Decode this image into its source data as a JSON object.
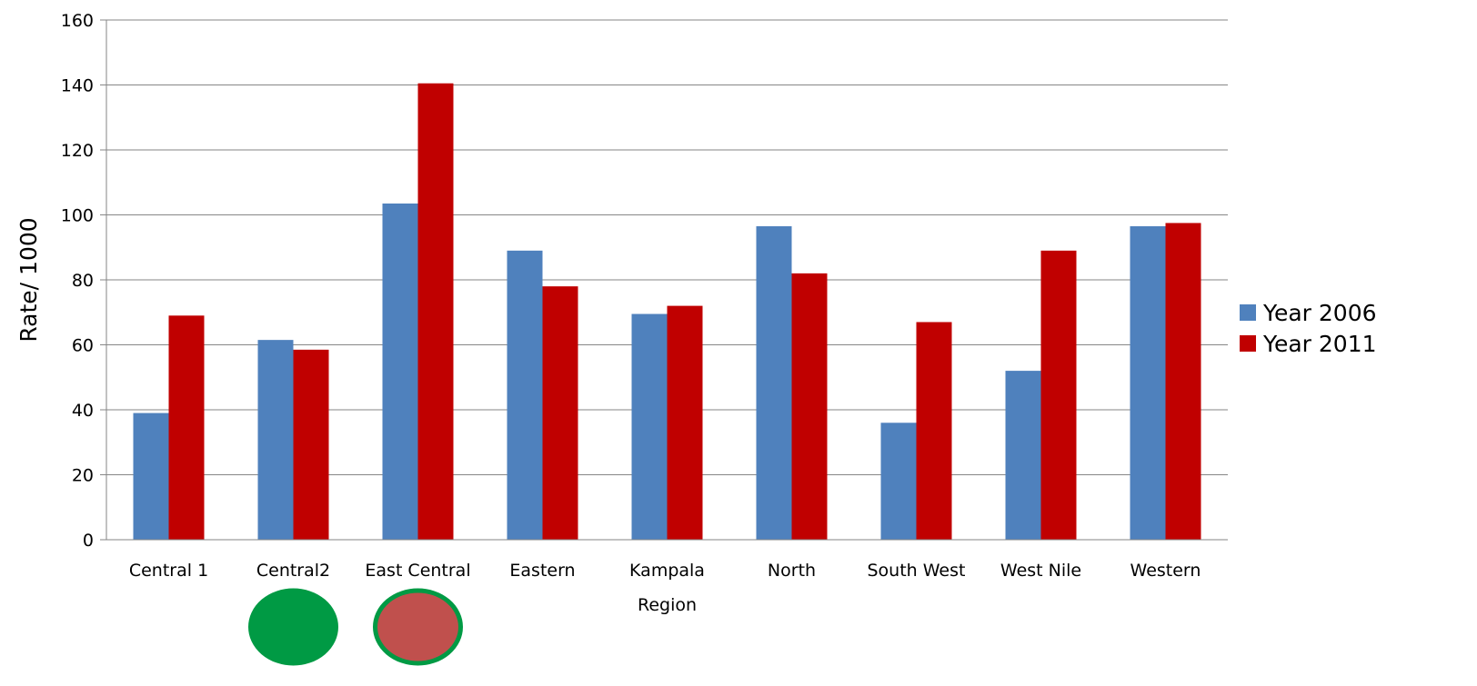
{
  "chart_data": {
    "type": "bar",
    "categories": [
      "Central 1",
      "Central2",
      "East Central",
      "Eastern",
      "Kampala",
      "North",
      "South West",
      "West Nile",
      "Western"
    ],
    "series": [
      {
        "name": "Year 2006",
        "values": [
          39,
          61.5,
          103.5,
          89,
          69.5,
          96.5,
          36,
          52,
          96.5
        ],
        "color": "#4f81bd"
      },
      {
        "name": "Year 2011",
        "values": [
          69,
          58.5,
          140.5,
          78,
          72,
          82,
          67,
          89,
          97.5
        ],
        "color": "#c00000"
      }
    ],
    "xlabel": "Region",
    "ylabel": "Rate/ 1000",
    "ylim": [
      0,
      160
    ],
    "yticks": [
      0,
      20,
      40,
      60,
      80,
      100,
      120,
      140,
      160
    ],
    "grid": true,
    "legend": "right",
    "annotations": [
      {
        "type": "circle",
        "category": "Central2",
        "fill": "#009a44",
        "stroke": "#009a44"
      },
      {
        "type": "circle",
        "category": "East Central",
        "fill": "#c0504d",
        "stroke": "#009a44"
      }
    ]
  }
}
